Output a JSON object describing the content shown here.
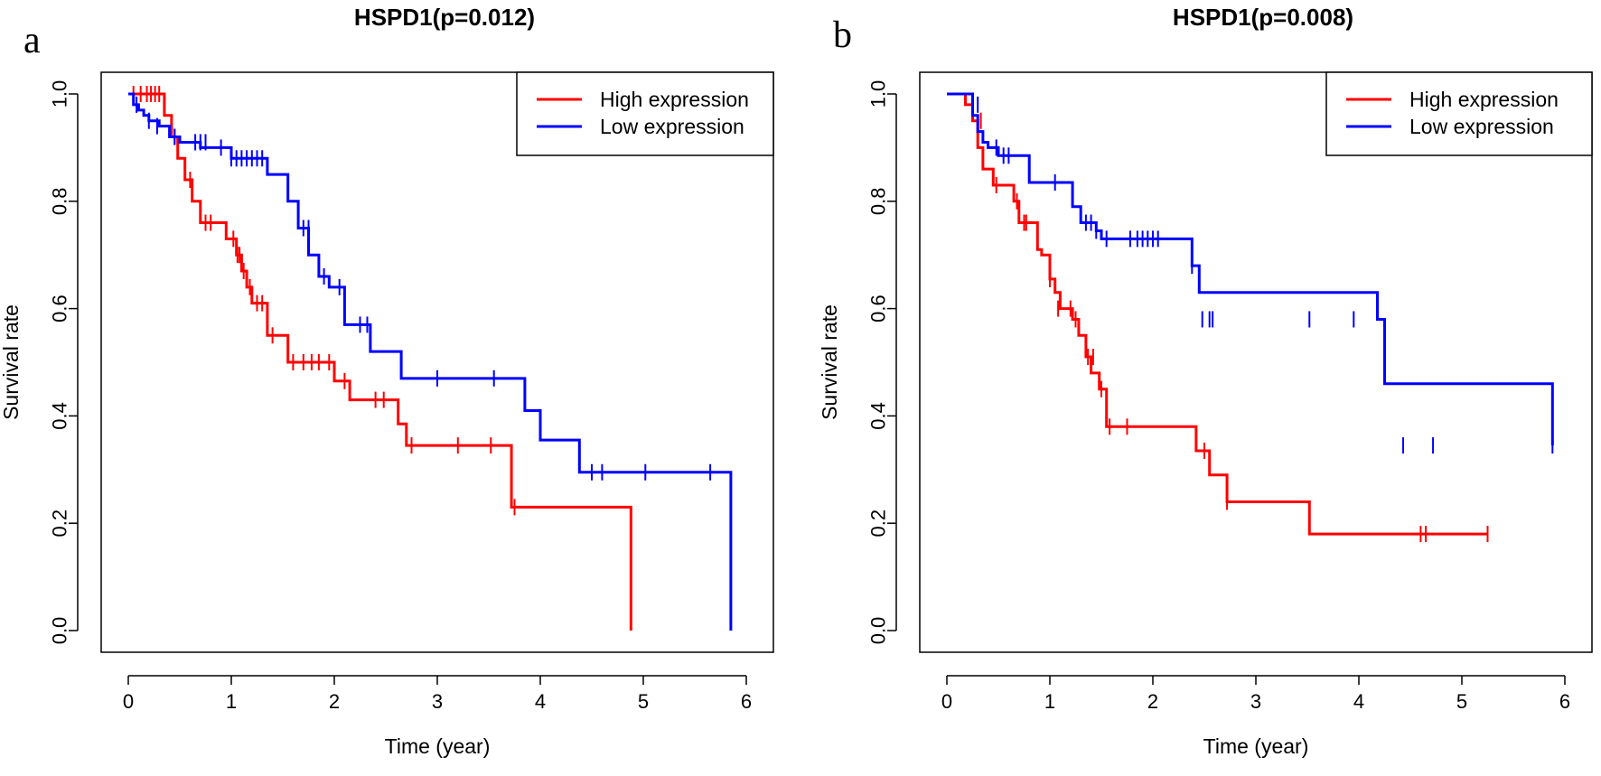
{
  "chart_data": [
    {
      "type": "line",
      "panel_letter": "a",
      "title": "HSPD1(p=0.012)",
      "xlabel": "Time (year)",
      "ylabel": "Survival rate",
      "xlim": [
        0,
        6
      ],
      "ylim": [
        0,
        1
      ],
      "xticks": [
        "0",
        "1",
        "2",
        "3",
        "4",
        "5",
        "6"
      ],
      "yticks": [
        "0.0",
        "0.2",
        "0.4",
        "0.6",
        "0.8",
        "1.0"
      ],
      "legend_position": "top-right",
      "grid": false,
      "series": [
        {
          "name": "High expression",
          "color": "#ff0000",
          "x": [
            0,
            0.35,
            0.42,
            0.48,
            0.55,
            0.62,
            0.7,
            0.95,
            1.05,
            1.1,
            1.15,
            1.2,
            1.35,
            1.55,
            2.0,
            2.15,
            2.62,
            2.7,
            3.72,
            4.88,
            4.88
          ],
          "y": [
            1.0,
            0.96,
            0.92,
            0.88,
            0.84,
            0.8,
            0.76,
            0.73,
            0.7,
            0.67,
            0.64,
            0.61,
            0.55,
            0.5,
            0.465,
            0.43,
            0.385,
            0.345,
            0.23,
            0.23,
            0.0
          ],
          "censor_x": [
            0.05,
            0.12,
            0.18,
            0.22,
            0.26,
            0.3,
            0.45,
            0.6,
            0.75,
            0.8,
            1.02,
            1.06,
            1.08,
            1.12,
            1.18,
            1.25,
            1.3,
            1.4,
            1.6,
            1.7,
            1.78,
            1.85,
            1.95,
            2.1,
            2.4,
            2.48,
            2.75,
            3.2,
            3.52,
            3.75
          ],
          "censor_y": [
            1.0,
            1.0,
            1.0,
            1.0,
            1.0,
            1.0,
            0.92,
            0.84,
            0.76,
            0.76,
            0.73,
            0.7,
            0.7,
            0.67,
            0.64,
            0.61,
            0.61,
            0.55,
            0.5,
            0.5,
            0.5,
            0.5,
            0.5,
            0.465,
            0.43,
            0.43,
            0.345,
            0.345,
            0.345,
            0.23
          ]
        },
        {
          "name": "Low expression",
          "color": "#0000ff",
          "x": [
            0,
            0.05,
            0.1,
            0.15,
            0.2,
            0.3,
            0.4,
            0.5,
            0.7,
            1.0,
            1.35,
            1.55,
            1.65,
            1.75,
            1.85,
            1.95,
            2.1,
            2.35,
            2.65,
            3.85,
            4.0,
            4.38,
            5.85,
            5.85
          ],
          "y": [
            1.0,
            0.98,
            0.97,
            0.96,
            0.95,
            0.94,
            0.92,
            0.91,
            0.9,
            0.88,
            0.85,
            0.8,
            0.75,
            0.7,
            0.66,
            0.64,
            0.57,
            0.52,
            0.47,
            0.41,
            0.355,
            0.295,
            0.295,
            0.0
          ],
          "censor_x": [
            0.08,
            0.2,
            0.28,
            0.45,
            0.65,
            0.7,
            0.75,
            0.9,
            1.0,
            1.05,
            1.1,
            1.15,
            1.2,
            1.25,
            1.3,
            1.65,
            1.7,
            1.75,
            1.9,
            2.05,
            2.25,
            2.32,
            3.0,
            3.55,
            4.5,
            4.6,
            5.02,
            5.65
          ],
          "censor_y": [
            0.98,
            0.95,
            0.94,
            0.92,
            0.91,
            0.91,
            0.91,
            0.9,
            0.88,
            0.88,
            0.88,
            0.88,
            0.88,
            0.88,
            0.88,
            0.77,
            0.75,
            0.75,
            0.66,
            0.64,
            0.57,
            0.57,
            0.47,
            0.47,
            0.295,
            0.295,
            0.295,
            0.295
          ]
        }
      ]
    },
    {
      "type": "line",
      "panel_letter": "b",
      "title": "HSPD1(p=0.008)",
      "xlabel": "Time (year)",
      "ylabel": "Survival rate",
      "xlim": [
        0,
        6
      ],
      "ylim": [
        0,
        1
      ],
      "xticks": [
        "0",
        "1",
        "2",
        "3",
        "4",
        "5",
        "6"
      ],
      "yticks": [
        "0.0",
        "0.2",
        "0.4",
        "0.6",
        "0.8",
        "1.0"
      ],
      "legend_position": "top-right",
      "grid": false,
      "series": [
        {
          "name": "High expression",
          "color": "#ff0000",
          "x": [
            0,
            0.18,
            0.25,
            0.3,
            0.35,
            0.38,
            0.45,
            0.65,
            0.7,
            0.88,
            0.92,
            1.0,
            1.05,
            1.1,
            1.22,
            1.28,
            1.35,
            1.4,
            1.48,
            1.55,
            2.42,
            2.55,
            2.72,
            3.52,
            5.25
          ],
          "y": [
            1.0,
            0.98,
            0.95,
            0.9,
            0.86,
            0.86,
            0.83,
            0.8,
            0.76,
            0.71,
            0.7,
            0.655,
            0.63,
            0.6,
            0.58,
            0.55,
            0.51,
            0.48,
            0.45,
            0.38,
            0.335,
            0.29,
            0.24,
            0.18,
            0.18
          ],
          "censor_x": [
            0.25,
            0.33,
            0.48,
            0.68,
            0.75,
            0.77,
            1.0,
            1.08,
            1.2,
            1.25,
            1.37,
            1.42,
            1.5,
            1.58,
            1.75,
            2.5,
            2.72,
            4.6,
            4.65,
            5.25
          ],
          "censor_y": [
            0.98,
            0.95,
            0.83,
            0.8,
            0.76,
            0.76,
            0.655,
            0.6,
            0.6,
            0.58,
            0.51,
            0.51,
            0.45,
            0.38,
            0.38,
            0.335,
            0.24,
            0.18,
            0.18,
            0.18
          ]
        },
        {
          "name": "Low expression",
          "color": "#0000ff",
          "x": [
            0,
            0.25,
            0.3,
            0.35,
            0.4,
            0.5,
            0.6,
            0.8,
            1.22,
            1.3,
            1.45,
            1.5,
            2.38,
            2.45,
            4.18,
            4.25,
            5.88
          ],
          "y": [
            1.0,
            0.96,
            0.93,
            0.91,
            0.9,
            0.885,
            0.885,
            0.835,
            0.79,
            0.76,
            0.745,
            0.73,
            0.68,
            0.63,
            0.58,
            0.46,
            0.345
          ],
          "censor_x": [
            0.3,
            0.48,
            0.55,
            0.6,
            1.05,
            1.35,
            1.4,
            1.45,
            1.55,
            1.78,
            1.85,
            1.9,
            1.95,
            2.0,
            2.05,
            2.38,
            2.48,
            2.55,
            2.58,
            3.52,
            3.95,
            4.43,
            4.72,
            5.88
          ],
          "censor_y": [
            0.98,
            0.9,
            0.885,
            0.885,
            0.835,
            0.76,
            0.76,
            0.745,
            0.73,
            0.73,
            0.73,
            0.73,
            0.73,
            0.73,
            0.73,
            0.68,
            0.58,
            0.58,
            0.58,
            0.58,
            0.58,
            0.345,
            0.345,
            0.345
          ]
        }
      ]
    }
  ]
}
